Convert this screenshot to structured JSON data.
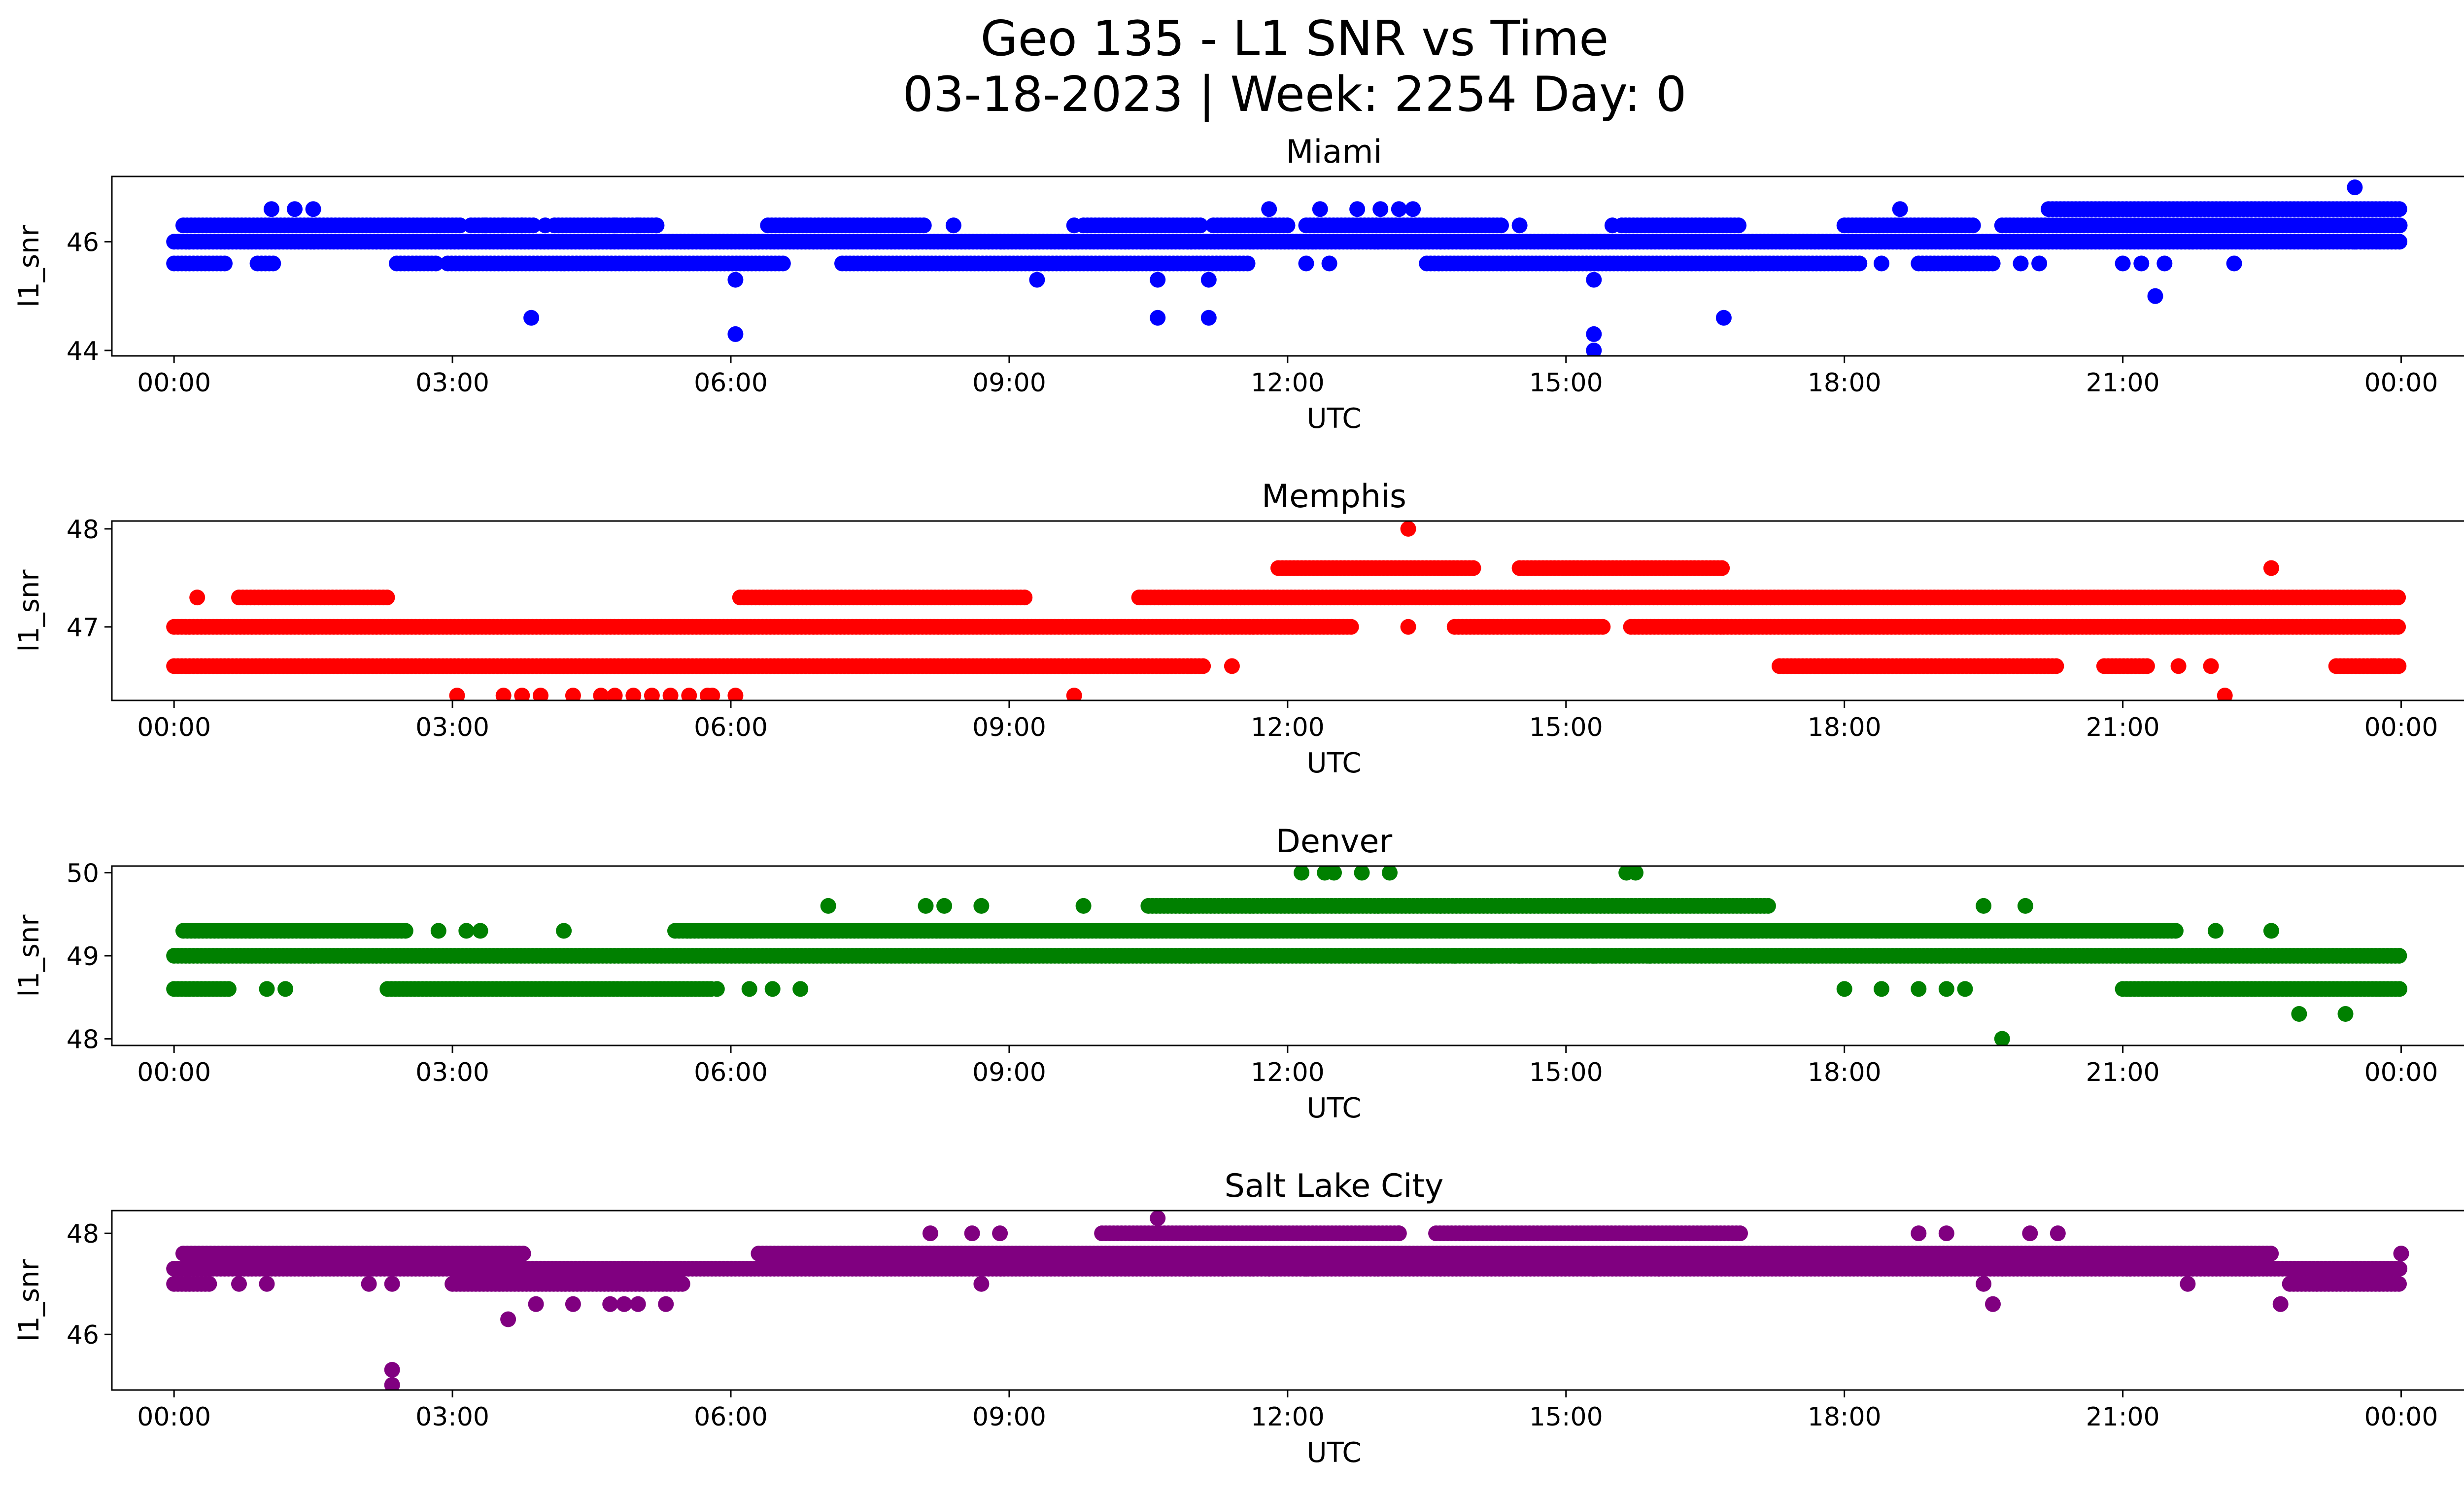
{
  "figure": {
    "title_line1": "Geo 135 - L1 SNR vs Time",
    "title_line2": "03-18-2023 | Week: 2254 Day: 0"
  },
  "chart_data": [
    {
      "type": "scatter",
      "title": "Miami",
      "xlabel": "UTC",
      "ylabel": "l1_snr",
      "color": "#0000ff",
      "xticks": [
        "00:00",
        "03:00",
        "06:00",
        "09:00",
        "12:00",
        "15:00",
        "18:00",
        "21:00",
        "00:00"
      ],
      "xlim_hours": [
        -0.67,
        25.67
      ],
      "ylim": [
        43.9,
        47.2
      ],
      "yticks": [
        44,
        46
      ],
      "bands": [
        {
          "y": 46.0,
          "segments": [
            [
              0.0,
              24.0
            ]
          ]
        },
        {
          "y": 45.6,
          "segments": [
            [
              0.0,
              0.55
            ],
            [
              0.9,
              1.1
            ],
            [
              2.4,
              2.85
            ],
            [
              2.95,
              6.6
            ],
            [
              7.2,
              11.6
            ],
            [
              13.5,
              18.2
            ],
            [
              18.8,
              19.6
            ]
          ]
        },
        {
          "y": 46.3,
          "segments": [
            [
              0.1,
              3.1
            ],
            [
              3.2,
              3.9
            ],
            [
              4.1,
              5.2
            ],
            [
              6.4,
              8.1
            ],
            [
              9.8,
              11.1
            ],
            [
              11.2,
              12.0
            ],
            [
              12.2,
              14.3
            ],
            [
              15.6,
              16.9
            ],
            [
              18.0,
              19.4
            ],
            [
              19.7,
              24.0
            ]
          ]
        },
        {
          "y": 46.6,
          "segments": [
            [
              20.2,
              24.0
            ]
          ]
        }
      ],
      "scatter": [
        {
          "x": 1.05,
          "y": 46.6
        },
        {
          "x": 1.3,
          "y": 46.6
        },
        {
          "x": 1.5,
          "y": 46.6
        },
        {
          "x": 3.35,
          "y": 46.3
        },
        {
          "x": 3.55,
          "y": 46.3
        },
        {
          "x": 3.75,
          "y": 46.3
        },
        {
          "x": 3.85,
          "y": 44.6
        },
        {
          "x": 4.0,
          "y": 46.3
        },
        {
          "x": 4.75,
          "y": 46.3
        },
        {
          "x": 5.0,
          "y": 46.3
        },
        {
          "x": 5.2,
          "y": 46.3
        },
        {
          "x": 6.05,
          "y": 45.3
        },
        {
          "x": 6.05,
          "y": 44.3
        },
        {
          "x": 8.4,
          "y": 46.3
        },
        {
          "x": 9.3,
          "y": 45.3
        },
        {
          "x": 9.7,
          "y": 46.3
        },
        {
          "x": 10.6,
          "y": 45.3
        },
        {
          "x": 10.6,
          "y": 44.6
        },
        {
          "x": 11.15,
          "y": 45.3
        },
        {
          "x": 11.15,
          "y": 44.6
        },
        {
          "x": 11.8,
          "y": 46.6
        },
        {
          "x": 12.2,
          "y": 45.6
        },
        {
          "x": 12.45,
          "y": 45.6
        },
        {
          "x": 12.35,
          "y": 46.6
        },
        {
          "x": 12.75,
          "y": 46.6
        },
        {
          "x": 13.0,
          "y": 46.6
        },
        {
          "x": 13.2,
          "y": 46.6
        },
        {
          "x": 13.35,
          "y": 46.6
        },
        {
          "x": 14.5,
          "y": 46.3
        },
        {
          "x": 15.3,
          "y": 45.3
        },
        {
          "x": 15.3,
          "y": 44.3
        },
        {
          "x": 15.3,
          "y": 44.0
        },
        {
          "x": 15.5,
          "y": 46.3
        },
        {
          "x": 16.7,
          "y": 44.6
        },
        {
          "x": 18.4,
          "y": 45.6
        },
        {
          "x": 18.6,
          "y": 46.6
        },
        {
          "x": 19.9,
          "y": 45.6
        },
        {
          "x": 20.1,
          "y": 45.6
        },
        {
          "x": 21.0,
          "y": 45.6
        },
        {
          "x": 21.2,
          "y": 45.6
        },
        {
          "x": 21.45,
          "y": 45.6
        },
        {
          "x": 21.35,
          "y": 45.0
        },
        {
          "x": 22.2,
          "y": 45.6
        },
        {
          "x": 23.5,
          "y": 47.0
        },
        {
          "x": 23.5,
          "y": 46.0
        }
      ]
    },
    {
      "type": "scatter",
      "title": "Memphis",
      "xlabel": "UTC",
      "ylabel": "l1_snr",
      "color": "#ff0000",
      "xticks": [
        "00:00",
        "03:00",
        "06:00",
        "09:00",
        "12:00",
        "15:00",
        "18:00",
        "21:00",
        "00:00"
      ],
      "xlim_hours": [
        -0.67,
        25.67
      ],
      "ylim": [
        46.25,
        48.08
      ],
      "yticks": [
        47,
        48
      ],
      "bands": [
        {
          "y": 47.0,
          "segments": [
            [
              0.0,
              12.7
            ],
            [
              13.8,
              15.4
            ],
            [
              15.7,
              16.7
            ],
            [
              16.7,
              24.0
            ]
          ]
        },
        {
          "y": 46.6,
          "segments": [
            [
              0.0,
              11.1
            ],
            [
              17.3,
              20.3
            ],
            [
              20.8,
              21.3
            ],
            [
              23.3,
              24.0
            ]
          ]
        },
        {
          "y": 47.3,
          "segments": [
            [
              0.7,
              2.3
            ],
            [
              6.1,
              9.2
            ],
            [
              10.4,
              24.0
            ]
          ]
        },
        {
          "y": 47.6,
          "segments": [
            [
              11.9,
              14.0
            ],
            [
              14.5,
              15.0
            ],
            [
              15.0,
              16.7
            ]
          ]
        }
      ],
      "scatter": [
        {
          "x": 0.25,
          "y": 47.3
        },
        {
          "x": 3.05,
          "y": 46.3
        },
        {
          "x": 3.55,
          "y": 46.3
        },
        {
          "x": 3.75,
          "y": 46.3
        },
        {
          "x": 3.95,
          "y": 46.3
        },
        {
          "x": 4.3,
          "y": 46.3
        },
        {
          "x": 4.6,
          "y": 46.3
        },
        {
          "x": 4.75,
          "y": 46.3
        },
        {
          "x": 4.95,
          "y": 46.3
        },
        {
          "x": 5.15,
          "y": 46.3
        },
        {
          "x": 5.35,
          "y": 46.3
        },
        {
          "x": 5.55,
          "y": 46.3
        },
        {
          "x": 5.75,
          "y": 46.3
        },
        {
          "x": 5.8,
          "y": 46.3
        },
        {
          "x": 6.05,
          "y": 46.3
        },
        {
          "x": 9.7,
          "y": 46.3
        },
        {
          "x": 11.4,
          "y": 46.6
        },
        {
          "x": 13.3,
          "y": 48.0
        },
        {
          "x": 13.3,
          "y": 47.0
        },
        {
          "x": 21.6,
          "y": 46.6
        },
        {
          "x": 21.95,
          "y": 46.6
        },
        {
          "x": 22.1,
          "y": 46.3
        },
        {
          "x": 22.6,
          "y": 47.6
        },
        {
          "x": 23.7,
          "y": 46.6
        }
      ]
    },
    {
      "type": "scatter",
      "title": "Denver",
      "xlabel": "UTC",
      "ylabel": "l1_snr",
      "color": "#008000",
      "xticks": [
        "00:00",
        "03:00",
        "06:00",
        "09:00",
        "12:00",
        "15:00",
        "18:00",
        "21:00",
        "00:00"
      ],
      "xlim_hours": [
        -0.67,
        25.67
      ],
      "ylim": [
        47.92,
        50.08
      ],
      "yticks": [
        48,
        49,
        50
      ],
      "bands": [
        {
          "y": 49.0,
          "segments": [
            [
              0.0,
              11.0
            ],
            [
              11.0,
              24.0
            ]
          ]
        },
        {
          "y": 48.6,
          "segments": [
            [
              0.0,
              0.6
            ],
            [
              2.3,
              5.8
            ],
            [
              21.0,
              24.0
            ]
          ]
        },
        {
          "y": 49.3,
          "segments": [
            [
              0.1,
              2.5
            ],
            [
              5.4,
              21.6
            ]
          ]
        },
        {
          "y": 49.6,
          "segments": [
            [
              10.5,
              17.2
            ]
          ]
        }
      ],
      "scatter": [
        {
          "x": 1.0,
          "y": 48.6
        },
        {
          "x": 1.2,
          "y": 48.6
        },
        {
          "x": 2.85,
          "y": 49.3
        },
        {
          "x": 3.15,
          "y": 49.3
        },
        {
          "x": 3.3,
          "y": 49.3
        },
        {
          "x": 4.2,
          "y": 49.3
        },
        {
          "x": 5.85,
          "y": 48.6
        },
        {
          "x": 6.2,
          "y": 48.6
        },
        {
          "x": 6.45,
          "y": 48.6
        },
        {
          "x": 6.75,
          "y": 48.6
        },
        {
          "x": 7.05,
          "y": 49.6
        },
        {
          "x": 8.1,
          "y": 49.6
        },
        {
          "x": 8.3,
          "y": 49.6
        },
        {
          "x": 8.7,
          "y": 49.6
        },
        {
          "x": 9.8,
          "y": 49.6
        },
        {
          "x": 12.15,
          "y": 50.0
        },
        {
          "x": 12.4,
          "y": 50.0
        },
        {
          "x": 12.5,
          "y": 50.0
        },
        {
          "x": 12.8,
          "y": 50.0
        },
        {
          "x": 13.1,
          "y": 50.0
        },
        {
          "x": 13.4,
          "y": 49.0
        },
        {
          "x": 13.8,
          "y": 49.0
        },
        {
          "x": 14.2,
          "y": 49.0
        },
        {
          "x": 14.5,
          "y": 49.0
        },
        {
          "x": 15.3,
          "y": 49.0
        },
        {
          "x": 15.65,
          "y": 50.0
        },
        {
          "x": 15.75,
          "y": 50.0
        },
        {
          "x": 15.9,
          "y": 49.0
        },
        {
          "x": 18.0,
          "y": 48.6
        },
        {
          "x": 18.4,
          "y": 48.6
        },
        {
          "x": 18.8,
          "y": 48.6
        },
        {
          "x": 19.1,
          "y": 48.6
        },
        {
          "x": 19.3,
          "y": 48.6
        },
        {
          "x": 19.5,
          "y": 49.6
        },
        {
          "x": 19.7,
          "y": 48.0
        },
        {
          "x": 19.95,
          "y": 49.6
        },
        {
          "x": 22.0,
          "y": 49.3
        },
        {
          "x": 22.6,
          "y": 49.3
        },
        {
          "x": 22.9,
          "y": 48.3
        },
        {
          "x": 23.4,
          "y": 48.3
        }
      ]
    },
    {
      "type": "scatter",
      "title": "Salt Lake City",
      "xlabel": "UTC",
      "ylabel": "l1_snr",
      "color": "#800080",
      "xticks": [
        "00:00",
        "03:00",
        "06:00",
        "09:00",
        "12:00",
        "15:00",
        "18:00",
        "21:00",
        "00:00"
      ],
      "xlim_hours": [
        -0.67,
        25.67
      ],
      "ylim": [
        44.9,
        48.45
      ],
      "yticks": [
        46,
        48
      ],
      "bands": [
        {
          "y": 47.3,
          "segments": [
            [
              0.0,
              24.0
            ]
          ]
        },
        {
          "y": 47.0,
          "segments": [
            [
              0.0,
              0.4
            ],
            [
              3.0,
              5.5
            ],
            [
              22.8,
              24.0
            ]
          ]
        },
        {
          "y": 47.6,
          "segments": [
            [
              0.1,
              3.3
            ],
            [
              6.3,
              22.6
            ]
          ]
        },
        {
          "y": 47.6,
          "segments": [
            [
              3.3,
              3.8
            ]
          ]
        },
        {
          "y": 48.0,
          "segments": [
            [
              10.0,
              13.2
            ],
            [
              13.6,
              16.9
            ]
          ]
        }
      ],
      "scatter": [
        {
          "x": 0.7,
          "y": 47.0
        },
        {
          "x": 1.0,
          "y": 47.0
        },
        {
          "x": 2.1,
          "y": 47.0
        },
        {
          "x": 2.35,
          "y": 47.0
        },
        {
          "x": 2.35,
          "y": 45.3
        },
        {
          "x": 2.35,
          "y": 45.0
        },
        {
          "x": 3.6,
          "y": 46.3
        },
        {
          "x": 3.9,
          "y": 46.6
        },
        {
          "x": 4.3,
          "y": 46.6
        },
        {
          "x": 4.7,
          "y": 46.6
        },
        {
          "x": 4.85,
          "y": 46.6
        },
        {
          "x": 5.0,
          "y": 46.6
        },
        {
          "x": 5.3,
          "y": 46.6
        },
        {
          "x": 8.15,
          "y": 48.0
        },
        {
          "x": 8.6,
          "y": 48.0
        },
        {
          "x": 8.7,
          "y": 47.0
        },
        {
          "x": 8.9,
          "y": 48.0
        },
        {
          "x": 10.6,
          "y": 48.3
        },
        {
          "x": 11.3,
          "y": 47.3
        },
        {
          "x": 11.8,
          "y": 47.3
        },
        {
          "x": 12.2,
          "y": 47.3
        },
        {
          "x": 13.2,
          "y": 48.0
        },
        {
          "x": 15.3,
          "y": 47.3
        },
        {
          "x": 16.0,
          "y": 47.3
        },
        {
          "x": 18.8,
          "y": 48.0
        },
        {
          "x": 19.1,
          "y": 48.0
        },
        {
          "x": 19.5,
          "y": 47.0
        },
        {
          "x": 19.6,
          "y": 46.6
        },
        {
          "x": 20.0,
          "y": 48.0
        },
        {
          "x": 20.3,
          "y": 48.0
        },
        {
          "x": 21.7,
          "y": 47.0
        },
        {
          "x": 22.7,
          "y": 46.6
        },
        {
          "x": 24.0,
          "y": 47.6
        }
      ]
    }
  ]
}
